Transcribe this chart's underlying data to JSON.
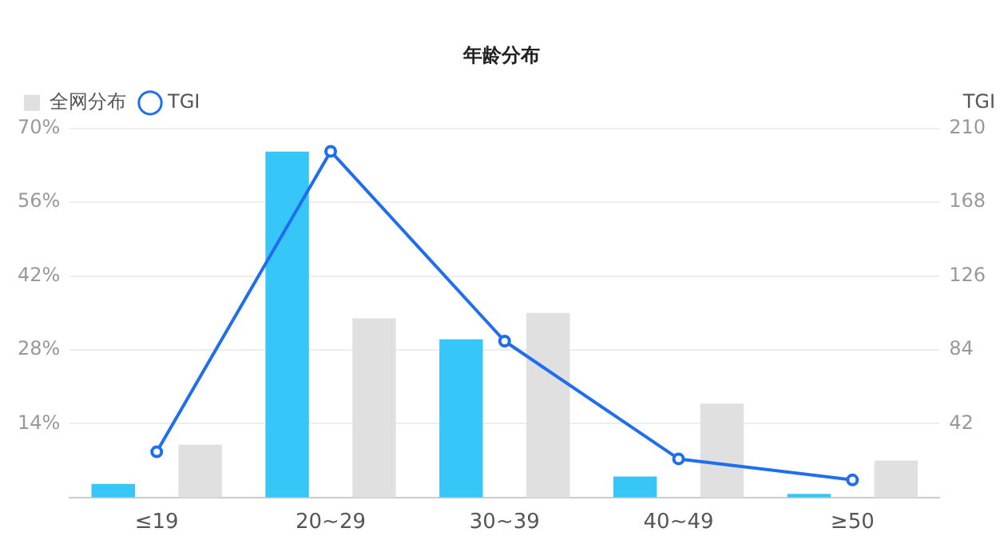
{
  "chart_data": {
    "type": "bar",
    "title": "年龄分布",
    "y2label": "TGI",
    "categories": [
      "≤19",
      "20~29",
      "30~39",
      "40~49",
      "≥50"
    ],
    "series": [
      {
        "color": "#36c6f7",
        "values": [
          2.6,
          65.6,
          30,
          4,
          0.7
        ]
      },
      {
        "name": "全网分布",
        "color": "#e0e0e0",
        "values": [
          10,
          34,
          35,
          17.8,
          7
        ]
      },
      {
        "name": "TGI",
        "type": "line",
        "axis": "y2",
        "color": "#1f6ef0",
        "values": [
          26,
          197,
          89,
          22,
          10
        ]
      }
    ],
    "ylim": [
      0,
      70
    ],
    "yticks": [
      {
        "value": 14,
        "label": "14%"
      },
      {
        "value": 28,
        "label": "28%"
      },
      {
        "value": 42,
        "label": "42%"
      },
      {
        "value": 56,
        "label": "56%"
      },
      {
        "value": 70,
        "label": "70%"
      }
    ],
    "y2lim": [
      0,
      210
    ],
    "y2ticks": [
      42,
      84,
      126,
      168,
      210
    ],
    "grid": "y",
    "legend": "top left",
    "marker": "circle"
  }
}
